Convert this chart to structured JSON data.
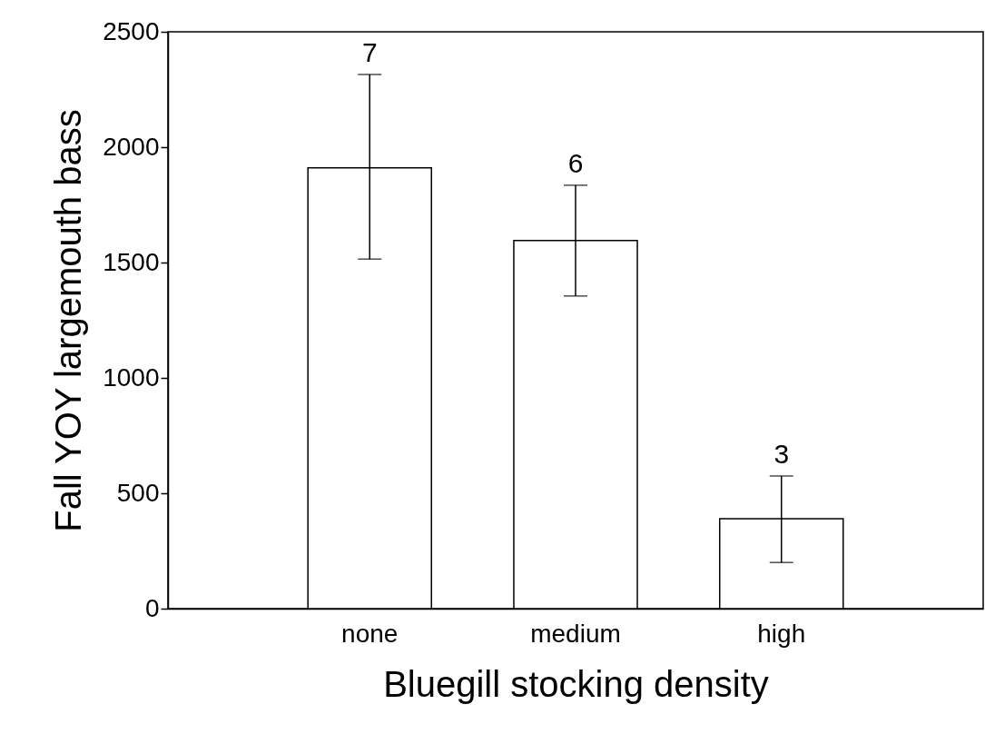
{
  "chart_data": {
    "type": "bar",
    "xlabel": "Bluegill stocking density",
    "ylabel": "Fall YOY largemouth bass",
    "categories": [
      "none",
      "medium",
      "high"
    ],
    "values": [
      1910,
      1595,
      390
    ],
    "errors": [
      [
        1515,
        2315
      ],
      [
        1355,
        1835
      ],
      [
        200,
        575
      ]
    ],
    "color": "#ffffff",
    "ylim": [
      0,
      2500
    ],
    "yticks": [
      0,
      500,
      1000,
      1500,
      2000,
      2500
    ],
    "grid": false,
    "annotations": [
      {
        "text": "7",
        "x": "none",
        "y": 2315
      },
      {
        "text": "6",
        "x": "medium",
        "y": 1835
      },
      {
        "text": "3",
        "x": "high",
        "y": 575
      }
    ]
  }
}
